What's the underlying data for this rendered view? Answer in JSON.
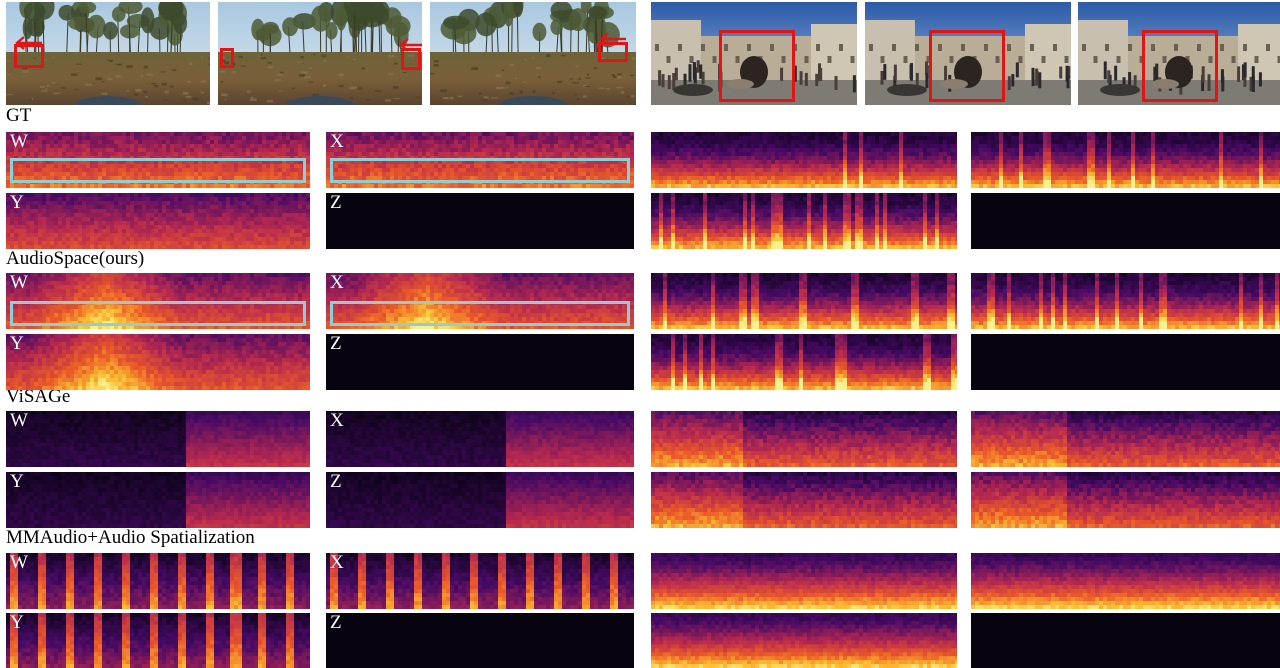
{
  "figure": {
    "rows": [
      {
        "label": "GT",
        "left_channels": [
          "W",
          "X",
          "Y",
          "Z"
        ]
      },
      {
        "label": "AudioSpace(ours)",
        "left_channels": [
          "W",
          "X",
          "Y",
          "Z"
        ]
      },
      {
        "label": "ViSAGe",
        "left_channels": [
          "W",
          "X",
          "Y",
          "Z"
        ]
      },
      {
        "label": "MMAudio+Audio Spatialization",
        "left_channels": [
          "W",
          "X",
          "Y",
          "Z"
        ]
      }
    ],
    "panoramas": {
      "left_scene": "field-with-trees",
      "right_scene": "city-square-street-performer",
      "arrow_icon": "left-arrow-icon"
    },
    "colors": {
      "highlight_box": "#8ecfd6",
      "red_box": "#e01515",
      "spectrogram_low": "#0a0412",
      "spectrogram_mid": "#c42c4a",
      "spectrogram_high": "#fdd84b"
    }
  }
}
